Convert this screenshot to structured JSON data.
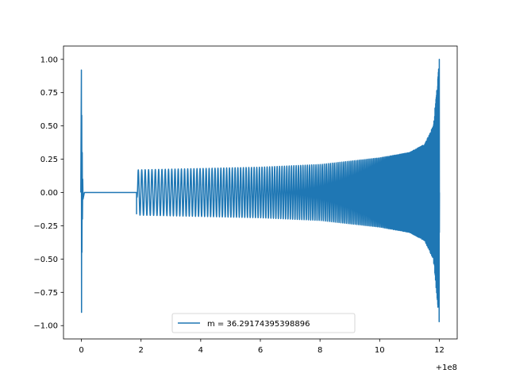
{
  "chart_data": {
    "type": "line",
    "title": "",
    "xlabel": "",
    "ylabel": "",
    "x_offset_label": "+1e8",
    "xlim": [
      -0.6,
      12.6
    ],
    "ylim": [
      -1.1,
      1.1
    ],
    "xticks": [
      0,
      2,
      4,
      6,
      8,
      10,
      12
    ],
    "xtick_labels": [
      "0",
      "2",
      "4",
      "6",
      "8",
      "10",
      "12"
    ],
    "yticks": [
      -1.0,
      -0.75,
      -0.5,
      -0.25,
      0.0,
      0.25,
      0.5,
      0.75,
      1.0
    ],
    "ytick_labels": [
      "−1.00",
      "−0.75",
      "−0.50",
      "−0.25",
      "0.00",
      "0.25",
      "0.50",
      "0.75",
      "1.00"
    ],
    "grid": false,
    "legend_position": "lower center",
    "series": [
      {
        "name": "m = 36.29174395398896",
        "color": "#1f77b4",
        "description_points": {
          "x": [
            0.0,
            0.02,
            0.05,
            0.1,
            1.85,
            1.9,
            4.0,
            6.0,
            8.0,
            10.0,
            11.0,
            11.5,
            11.8,
            11.95,
            12.0
          ],
          "envelope": [
            0.92,
            0.58,
            0.1,
            0.0,
            0.0,
            0.17,
            0.18,
            0.19,
            0.21,
            0.26,
            0.3,
            0.36,
            0.5,
            0.85,
            1.0
          ]
        }
      }
    ]
  }
}
